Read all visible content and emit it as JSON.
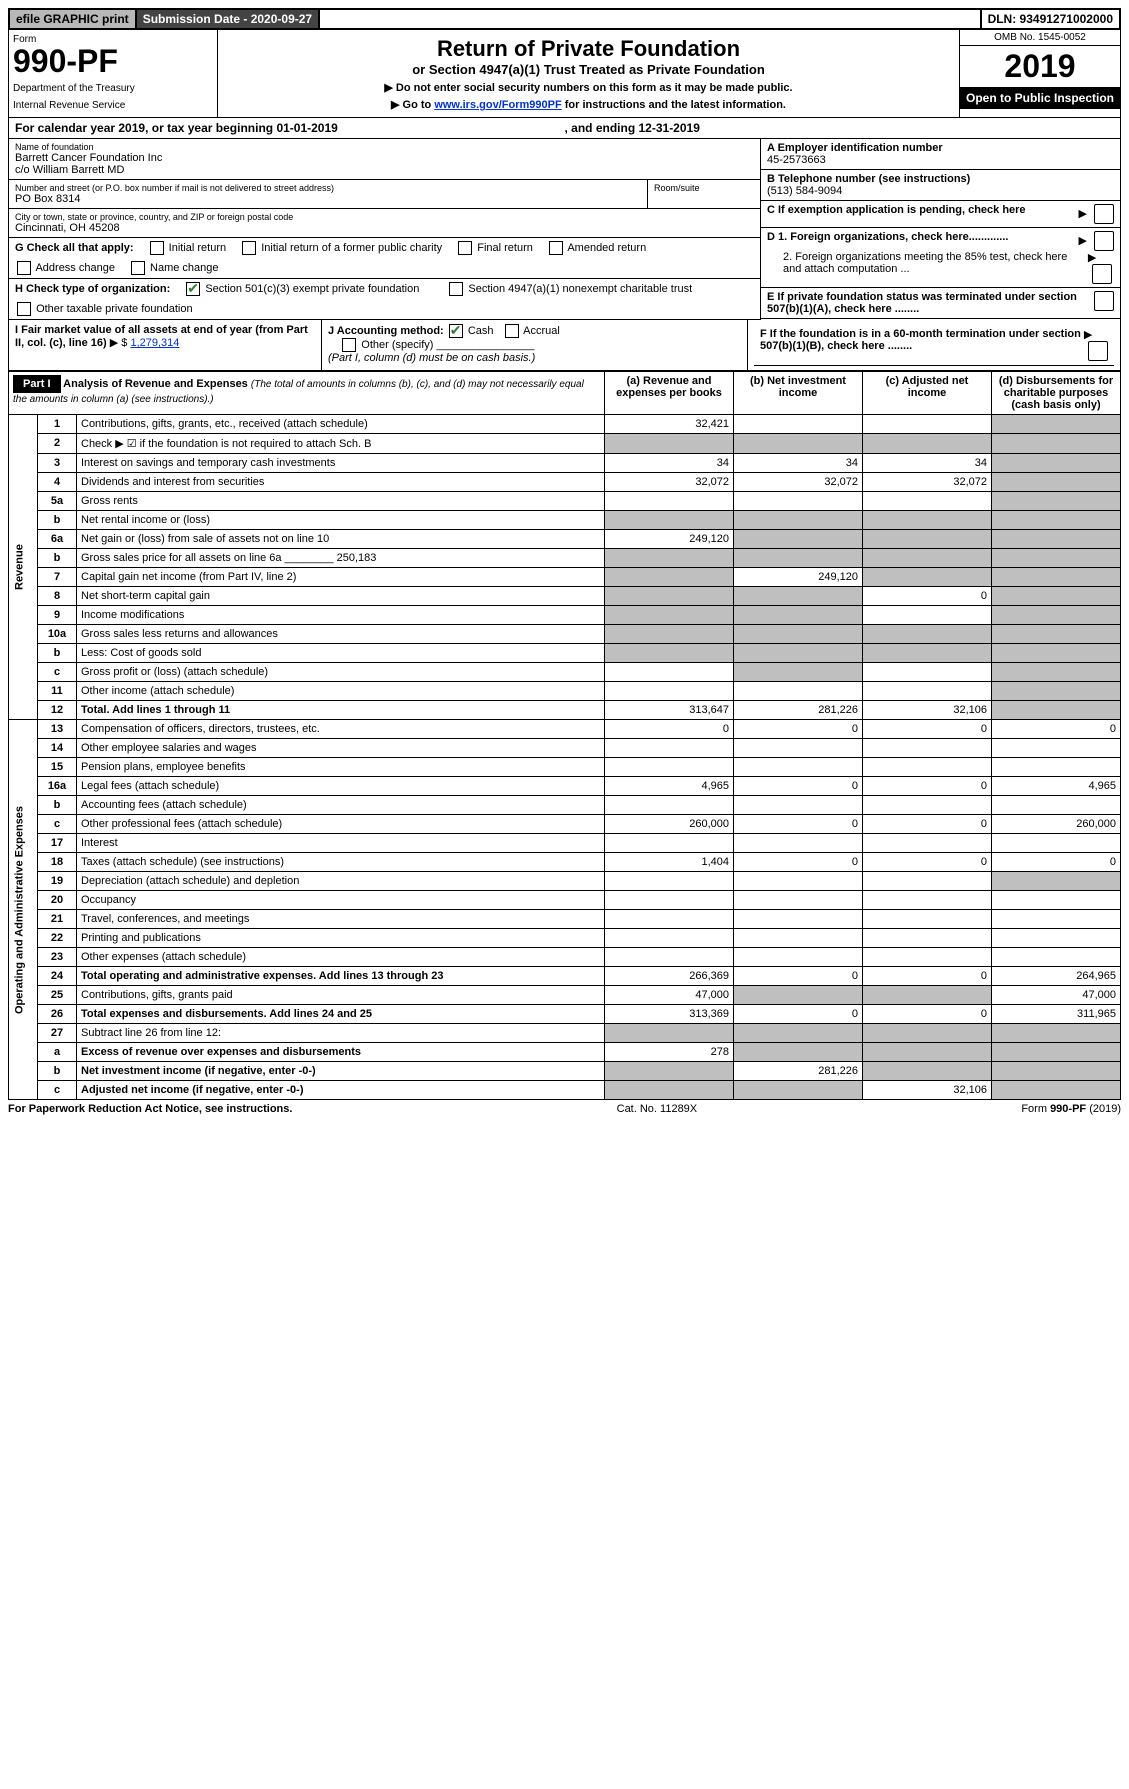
{
  "top": {
    "efile": "efile GRAPHIC print",
    "subm_label": "Submission Date - 2020-09-27",
    "dln": "DLN: 93491271002000"
  },
  "header": {
    "form_label": "Form",
    "form_number": "990-PF",
    "dept1": "Department of the Treasury",
    "dept2": "Internal Revenue Service",
    "title": "Return of Private Foundation",
    "subtitle": "or Section 4947(a)(1) Trust Treated as Private Foundation",
    "instr1": "▶ Do not enter social security numbers on this form as it may be made public.",
    "instr2_pre": "▶ Go to ",
    "instr2_link": "www.irs.gov/Form990PF",
    "instr2_post": " for instructions and the latest information.",
    "omb": "OMB No. 1545-0052",
    "year": "2019",
    "open": "Open to Public Inspection"
  },
  "cy": {
    "pre": "For calendar year 2019, or tax year beginning 01-01-2019",
    "mid": ", and ending 12-31-2019"
  },
  "nameblock": {
    "label": "Name of foundation",
    "line1": "Barrett Cancer Foundation Inc",
    "line2": "c/o William Barrett MD",
    "addr_label": "Number and street (or P.O. box number if mail is not delivered to street address)",
    "addr": "PO Box 8314",
    "room_label": "Room/suite",
    "city_label": "City or town, state or province, country, and ZIP or foreign postal code",
    "city": "Cincinnati, OH  45208"
  },
  "right": {
    "a_label": "A Employer identification number",
    "a_val": "45-2573663",
    "b_label": "B Telephone number (see instructions)",
    "b_val": "(513) 584-9094",
    "c_label": "C If exemption application is pending, check here",
    "d1_label": "D 1. Foreign organizations, check here.............",
    "d2_label": "2. Foreign organizations meeting the 85% test, check here and attach computation ...",
    "e_label": "E  If private foundation status was terminated under section 507(b)(1)(A), check here ........",
    "f_label": "F  If the foundation is in a 60-month termination under section 507(b)(1)(B), check here ........"
  },
  "g": {
    "label": "G Check all that apply:",
    "opts": [
      "Initial return",
      "Initial return of a former public charity",
      "Final return",
      "Amended return",
      "Address change",
      "Name change"
    ]
  },
  "h": {
    "label": "H Check type of organization:",
    "opt1": "Section 501(c)(3) exempt private foundation",
    "opt2": "Section 4947(a)(1) nonexempt charitable trust",
    "opt3": "Other taxable private foundation"
  },
  "i": {
    "label": "I Fair market value of all assets at end of year (from Part II, col. (c), line 16)",
    "val_pre": "▶ $ ",
    "val": "1,279,314"
  },
  "j": {
    "label": "J Accounting method:",
    "cash": "Cash",
    "accrual": "Accrual",
    "other": "Other (specify)",
    "note": "(Part I, column (d) must be on cash basis.)"
  },
  "part1": {
    "title_label": "Part I",
    "title": "Analysis of Revenue and Expenses",
    "title_note": "(The total of amounts in columns (b), (c), and (d) may not necessarily equal the amounts in column (a) (see instructions).)",
    "col_a": "(a)   Revenue and expenses per books",
    "col_b": "(b)   Net investment income",
    "col_c": "(c)   Adjusted net income",
    "col_d": "(d)   Disbursements for charitable purposes (cash basis only)"
  },
  "sections": {
    "revenue": "Revenue",
    "opex": "Operating and Administrative Expenses"
  },
  "rows": [
    {
      "n": "1",
      "label": "Contributions, gifts, grants, etc., received (attach schedule)",
      "a": "32,421",
      "b": "",
      "c": "",
      "d": "",
      "d_shade": true
    },
    {
      "n": "2",
      "label": "Check ▶ ☑ if the foundation is not required to attach Sch. B",
      "a": "",
      "b": "",
      "c": "",
      "d": "",
      "a_shade": true,
      "b_shade": true,
      "c_shade": true,
      "d_shade": true,
      "bold": false,
      "dots": true
    },
    {
      "n": "3",
      "label": "Interest on savings and temporary cash investments",
      "a": "34",
      "b": "34",
      "c": "34",
      "d": "",
      "d_shade": true
    },
    {
      "n": "4",
      "label": "Dividends and interest from securities",
      "a": "32,072",
      "b": "32,072",
      "c": "32,072",
      "d": "",
      "dots": true,
      "d_shade": true
    },
    {
      "n": "5a",
      "label": "Gross rents",
      "a": "",
      "b": "",
      "c": "",
      "d": "",
      "dots": true,
      "d_shade": true
    },
    {
      "n": "b",
      "label": "Net rental income or (loss)",
      "a": "",
      "b": "",
      "c": "",
      "d": "",
      "a_shade": true,
      "b_shade": true,
      "c_shade": true,
      "d_shade": true,
      "underline": true
    },
    {
      "n": "6a",
      "label": "Net gain or (loss) from sale of assets not on line 10",
      "a": "249,120",
      "b": "",
      "c": "",
      "d": "",
      "b_shade": true,
      "c_shade": true,
      "d_shade": true
    },
    {
      "n": "b",
      "label": "Gross sales price for all assets on line 6a ________ 250,183",
      "a": "",
      "b": "",
      "c": "",
      "d": "",
      "a_shade": true,
      "b_shade": true,
      "c_shade": true,
      "d_shade": true
    },
    {
      "n": "7",
      "label": "Capital gain net income (from Part IV, line 2)",
      "a": "",
      "b": "249,120",
      "c": "",
      "d": "",
      "dots": true,
      "a_shade": true,
      "c_shade": true,
      "d_shade": true
    },
    {
      "n": "8",
      "label": "Net short-term capital gain",
      "a": "",
      "b": "",
      "c": "0",
      "d": "",
      "dots": true,
      "a_shade": true,
      "b_shade": true,
      "d_shade": true
    },
    {
      "n": "9",
      "label": "Income modifications",
      "a": "",
      "b": "",
      "c": "",
      "d": "",
      "dots": true,
      "a_shade": true,
      "b_shade": true,
      "d_shade": true
    },
    {
      "n": "10a",
      "label": "Gross sales less returns and allowances",
      "a": "",
      "b": "",
      "c": "",
      "d": "",
      "a_shade": true,
      "b_shade": true,
      "c_shade": true,
      "d_shade": true,
      "underline": true
    },
    {
      "n": "b",
      "label": "Less: Cost of goods sold",
      "a": "",
      "b": "",
      "c": "",
      "d": "",
      "dots": true,
      "a_shade": true,
      "b_shade": true,
      "c_shade": true,
      "d_shade": true,
      "underline": true
    },
    {
      "n": "c",
      "label": "Gross profit or (loss) (attach schedule)",
      "a": "",
      "b": "",
      "c": "",
      "d": "",
      "dots": true,
      "b_shade": true,
      "d_shade": true
    },
    {
      "n": "11",
      "label": "Other income (attach schedule)",
      "a": "",
      "b": "",
      "c": "",
      "d": "",
      "dots": true,
      "d_shade": true
    },
    {
      "n": "12",
      "label": "Total. Add lines 1 through 11",
      "a": "313,647",
      "b": "281,226",
      "c": "32,106",
      "d": "",
      "dots": true,
      "bold": true,
      "d_shade": true
    },
    {
      "n": "13",
      "label": "Compensation of officers, directors, trustees, etc.",
      "a": "0",
      "b": "0",
      "c": "0",
      "d": "0"
    },
    {
      "n": "14",
      "label": "Other employee salaries and wages",
      "a": "",
      "b": "",
      "c": "",
      "d": "",
      "dots": true
    },
    {
      "n": "15",
      "label": "Pension plans, employee benefits",
      "a": "",
      "b": "",
      "c": "",
      "d": "",
      "dots": true
    },
    {
      "n": "16a",
      "label": "Legal fees (attach schedule)",
      "a": "4,965",
      "b": "0",
      "c": "0",
      "d": "4,965",
      "dots": true
    },
    {
      "n": "b",
      "label": "Accounting fees (attach schedule)",
      "a": "",
      "b": "",
      "c": "",
      "d": "",
      "dots": true
    },
    {
      "n": "c",
      "label": "Other professional fees (attach schedule)",
      "a": "260,000",
      "b": "0",
      "c": "0",
      "d": "260,000",
      "dots": true
    },
    {
      "n": "17",
      "label": "Interest",
      "a": "",
      "b": "",
      "c": "",
      "d": "",
      "dots": true
    },
    {
      "n": "18",
      "label": "Taxes (attach schedule) (see instructions)",
      "a": "1,404",
      "b": "0",
      "c": "0",
      "d": "0",
      "dots": true
    },
    {
      "n": "19",
      "label": "Depreciation (attach schedule) and depletion",
      "a": "",
      "b": "",
      "c": "",
      "d": "",
      "dots": true,
      "d_shade": true
    },
    {
      "n": "20",
      "label": "Occupancy",
      "a": "",
      "b": "",
      "c": "",
      "d": "",
      "dots": true
    },
    {
      "n": "21",
      "label": "Travel, conferences, and meetings",
      "a": "",
      "b": "",
      "c": "",
      "d": "",
      "dots": true
    },
    {
      "n": "22",
      "label": "Printing and publications",
      "a": "",
      "b": "",
      "c": "",
      "d": "",
      "dots": true
    },
    {
      "n": "23",
      "label": "Other expenses (attach schedule)",
      "a": "",
      "b": "",
      "c": "",
      "d": "",
      "dots": true
    },
    {
      "n": "24",
      "label": "Total operating and administrative expenses. Add lines 13 through 23",
      "a": "266,369",
      "b": "0",
      "c": "0",
      "d": "264,965",
      "dots": true,
      "bold": true
    },
    {
      "n": "25",
      "label": "Contributions, gifts, grants paid",
      "a": "47,000",
      "b": "",
      "c": "",
      "d": "47,000",
      "dots": true,
      "b_shade": true,
      "c_shade": true
    },
    {
      "n": "26",
      "label": "Total expenses and disbursements. Add lines 24 and 25",
      "a": "313,369",
      "b": "0",
      "c": "0",
      "d": "311,965",
      "bold": true
    },
    {
      "n": "27",
      "label": "Subtract line 26 from line 12:",
      "a": "",
      "b": "",
      "c": "",
      "d": "",
      "a_shade": true,
      "b_shade": true,
      "c_shade": true,
      "d_shade": true
    },
    {
      "n": "a",
      "label": "Excess of revenue over expenses and disbursements",
      "a": "278",
      "b": "",
      "c": "",
      "d": "",
      "bold": true,
      "b_shade": true,
      "c_shade": true,
      "d_shade": true
    },
    {
      "n": "b",
      "label": "Net investment income (if negative, enter -0-)",
      "a": "",
      "b": "281,226",
      "c": "",
      "d": "",
      "bold": true,
      "a_shade": true,
      "c_shade": true,
      "d_shade": true
    },
    {
      "n": "c",
      "label": "Adjusted net income (if negative, enter -0-)",
      "a": "",
      "b": "",
      "c": "32,106",
      "d": "",
      "bold": true,
      "dots": true,
      "a_shade": true,
      "b_shade": true,
      "d_shade": true
    }
  ],
  "footer": {
    "left": "For Paperwork Reduction Act Notice, see instructions.",
    "mid": "Cat. No. 11289X",
    "right": "Form 990-PF (2019)"
  }
}
